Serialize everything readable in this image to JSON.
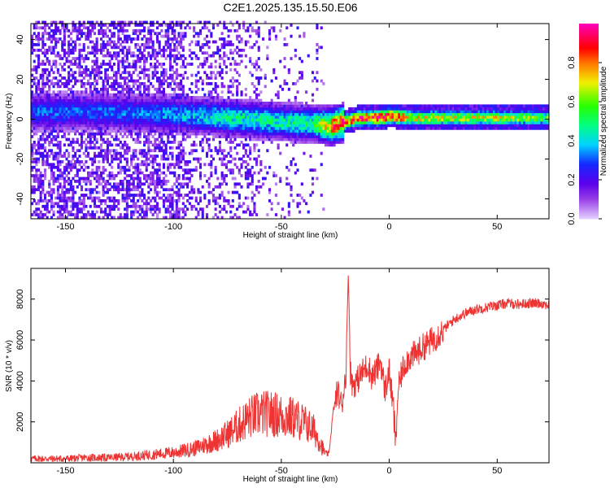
{
  "title": "C2E1.2025.135.15.50.E06",
  "colors": {
    "snr_line": "#ee3333",
    "frame": "#000000",
    "background": "#ffffff"
  },
  "chart_data": [
    {
      "type": "heatmap",
      "title": "C2E1.2025.135.15.50.E06",
      "xlabel": "Height of straight line (km)",
      "ylabel": "Frequency (Hz)",
      "xlim": [
        -166,
        74
      ],
      "ylim": [
        -50,
        48
      ],
      "x_ticks": [
        -150,
        -100,
        -50,
        0,
        50
      ],
      "y_ticks": [
        -40,
        -20,
        0,
        20,
        40
      ],
      "grid": false,
      "colorbar": {
        "label": "Normalized spectral amplitude",
        "range": [
          0.0,
          1.0
        ],
        "ticks": [
          0.0,
          0.2,
          0.4,
          0.6,
          0.8
        ],
        "colormap": "rainbow (violet-blue-cyan-green-yellow-red-magenta)"
      },
      "ridge": {
        "description_points": [
          {
            "height_km": -130,
            "frequency_hz": 3,
            "amplitude": 0.3
          },
          {
            "height_km": -100,
            "frequency_hz": 2,
            "amplitude": 0.35
          },
          {
            "height_km": -75,
            "frequency_hz": 0,
            "amplitude": 0.45
          },
          {
            "height_km": -50,
            "frequency_hz": -2,
            "amplitude": 0.45
          },
          {
            "height_km": -35,
            "frequency_hz": -3,
            "amplitude": 0.5
          },
          {
            "height_km": -27,
            "frequency_hz": -4,
            "amplitude": 0.8
          },
          {
            "height_km": -15,
            "frequency_hz": 0,
            "amplitude": 0.85
          },
          {
            "height_km": -5,
            "frequency_hz": 0,
            "amplitude": 0.9
          },
          {
            "height_km": 0,
            "frequency_hz": 1,
            "amplitude": 0.95
          },
          {
            "height_km": 10,
            "frequency_hz": 0,
            "amplitude": 0.7
          },
          {
            "height_km": 30,
            "frequency_hz": 0,
            "amplitude": 0.65
          },
          {
            "height_km": 50,
            "frequency_hz": 0,
            "amplitude": 0.65
          },
          {
            "height_km": 74,
            "frequency_hz": 0,
            "amplitude": 0.55
          }
        ]
      }
    },
    {
      "type": "line",
      "xlabel": "Height of straight line (km)",
      "ylabel": "SNR (10 * v/v)",
      "xlim": [
        -166,
        74
      ],
      "ylim": [
        0,
        9500
      ],
      "x_ticks": [
        -150,
        -100,
        -50,
        0,
        50
      ],
      "y_ticks": [
        2000,
        4000,
        6000,
        8000
      ],
      "grid": false,
      "series": [
        {
          "x": [
            -166,
            -150,
            -140,
            -130,
            -120,
            -110,
            -100,
            -95,
            -90,
            -85,
            -80,
            -75,
            -70,
            -65,
            -60,
            -55,
            -50,
            -45,
            -40,
            -35,
            -32,
            -30,
            -28,
            -26,
            -24,
            -22,
            -20,
            -19,
            -18,
            -17,
            -15,
            -12,
            -10,
            -8,
            -6,
            -4,
            -2,
            0,
            2,
            3,
            4,
            6,
            8,
            10,
            12,
            15,
            20,
            25,
            30,
            35,
            40,
            45,
            50,
            55,
            60,
            65,
            70,
            74
          ],
          "y": [
            200,
            200,
            250,
            250,
            300,
            400,
            500,
            600,
            700,
            900,
            1100,
            1400,
            1800,
            2200,
            2400,
            2400,
            2300,
            2200,
            2000,
            1600,
            1000,
            500,
            400,
            2500,
            3500,
            2800,
            4500,
            9400,
            4500,
            3800,
            4000,
            4500,
            4800,
            4200,
            4500,
            5000,
            3500,
            4500,
            2500,
            900,
            3500,
            4500,
            5000,
            5200,
            5300,
            5600,
            6000,
            6500,
            7000,
            7300,
            7500,
            7600,
            7700,
            7800,
            7750,
            7800,
            7800,
            7700
          ]
        }
      ]
    }
  ]
}
